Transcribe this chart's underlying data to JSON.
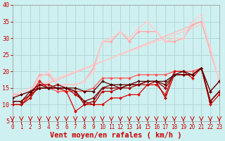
{
  "xlabel": "Vent moyen/en rafales ( km/h )",
  "xlim": [
    0,
    23
  ],
  "ylim": [
    5,
    40
  ],
  "yticks": [
    5,
    10,
    15,
    20,
    25,
    30,
    35,
    40
  ],
  "xticks": [
    0,
    1,
    2,
    3,
    4,
    5,
    6,
    7,
    8,
    9,
    10,
    11,
    12,
    13,
    14,
    15,
    16,
    17,
    18,
    19,
    20,
    21,
    22,
    23
  ],
  "bg_color": "#cff0f0",
  "grid_color": "#aed4d4",
  "series": [
    {
      "x": [
        0,
        1,
        2,
        3,
        4,
        5,
        6,
        7,
        8,
        9,
        10,
        11,
        12,
        13,
        14,
        15,
        16,
        17,
        18,
        19,
        20,
        21,
        22,
        23
      ],
      "y": [
        10,
        10,
        13,
        17,
        15,
        15,
        14,
        8,
        10,
        10,
        10,
        12,
        12,
        13,
        13,
        16,
        16,
        13,
        20,
        20,
        18,
        21,
        10,
        13
      ],
      "color": "#dd0000",
      "lw": 0.9,
      "marker": "D",
      "ms": 2.0,
      "zorder": 5
    },
    {
      "x": [
        0,
        1,
        2,
        3,
        4,
        5,
        6,
        7,
        8,
        9,
        10,
        11,
        12,
        13,
        14,
        15,
        16,
        17,
        18,
        19,
        20,
        21,
        22,
        23
      ],
      "y": [
        10,
        10,
        12,
        16,
        16,
        15,
        15,
        13,
        11,
        10,
        14,
        14,
        15,
        16,
        16,
        16,
        17,
        12,
        19,
        19,
        19,
        21,
        11,
        14
      ],
      "color": "#bb0000",
      "lw": 0.9,
      "marker": "D",
      "ms": 2.0,
      "zorder": 5
    },
    {
      "x": [
        0,
        1,
        2,
        3,
        4,
        5,
        6,
        7,
        8,
        9,
        10,
        11,
        12,
        13,
        14,
        15,
        16,
        17,
        18,
        19,
        20,
        21,
        22,
        23
      ],
      "y": [
        11,
        11,
        13,
        15,
        15,
        15,
        15,
        14,
        10,
        11,
        15,
        15,
        15,
        15,
        16,
        17,
        17,
        15,
        19,
        19,
        19,
        21,
        11,
        14
      ],
      "color": "#990000",
      "lw": 0.9,
      "marker": "D",
      "ms": 2.0,
      "zorder": 5
    },
    {
      "x": [
        0,
        1,
        2,
        3,
        4,
        5,
        6,
        7,
        8,
        9,
        10,
        11,
        12,
        13,
        14,
        15,
        16,
        17,
        18,
        19,
        20,
        21,
        22,
        23
      ],
      "y": [
        11,
        11,
        14,
        16,
        15,
        16,
        15,
        14,
        11,
        12,
        15,
        16,
        15,
        16,
        16,
        17,
        17,
        16,
        19,
        19,
        19,
        21,
        11,
        14
      ],
      "color": "#770000",
      "lw": 0.9,
      "marker": "D",
      "ms": 2.0,
      "zorder": 5
    },
    {
      "x": [
        0,
        1,
        2,
        3,
        4,
        5,
        6,
        7,
        8,
        9,
        10,
        11,
        12,
        13,
        14,
        15,
        16,
        17,
        18,
        19,
        20,
        21,
        22,
        23
      ],
      "y": [
        12,
        13,
        14,
        15,
        15,
        15,
        15,
        15,
        14,
        14,
        17,
        16,
        16,
        16,
        17,
        17,
        17,
        17,
        19,
        20,
        19,
        21,
        14,
        17
      ],
      "color": "#550000",
      "lw": 0.9,
      "marker": "D",
      "ms": 2.0,
      "zorder": 5
    },
    {
      "x": [
        0,
        1,
        2,
        3,
        4,
        5,
        6,
        7,
        8,
        9,
        10,
        11,
        12,
        13,
        14,
        15,
        16,
        17,
        18,
        19,
        20,
        21,
        22,
        23
      ],
      "y": [
        10,
        10,
        13,
        15,
        15,
        14,
        14,
        14,
        14,
        15,
        18,
        18,
        18,
        18,
        19,
        19,
        19,
        19,
        20,
        20,
        20,
        21,
        14,
        17
      ],
      "color": "#ff5555",
      "lw": 0.9,
      "marker": "D",
      "ms": 2.0,
      "zorder": 4
    },
    {
      "x": [
        0,
        1,
        2,
        3,
        4,
        5,
        6,
        7,
        8,
        9,
        10,
        11,
        12,
        13,
        14,
        15,
        16,
        17,
        18,
        19,
        20,
        21,
        22,
        23
      ],
      "y": [
        13,
        13,
        14,
        19,
        19,
        16,
        16,
        16,
        17,
        21,
        29,
        29,
        32,
        29,
        32,
        32,
        32,
        29,
        29,
        30,
        34,
        35,
        26,
        17
      ],
      "color": "#ffaaaa",
      "lw": 1.0,
      "marker": "D",
      "ms": 2.0,
      "zorder": 3
    },
    {
      "x": [
        0,
        1,
        2,
        3,
        4,
        5,
        6,
        7,
        8,
        9,
        10,
        11,
        12,
        13,
        14,
        15,
        16,
        17,
        18,
        19,
        20,
        21,
        22,
        23
      ],
      "y": [
        12,
        13,
        14,
        18,
        20,
        16,
        16,
        16,
        17,
        20,
        29,
        30,
        32,
        30,
        33,
        35,
        32,
        29,
        30,
        30,
        35,
        37,
        27,
        17
      ],
      "color": "#ffcccc",
      "lw": 1.0,
      "marker": "D",
      "ms": 2.0,
      "zorder": 3
    },
    {
      "x": [
        0,
        21
      ],
      "y": [
        12,
        35
      ],
      "color": "#ffbbbb",
      "lw": 1.0,
      "marker": null,
      "ms": 0,
      "zorder": 2
    },
    {
      "x": [
        0,
        21
      ],
      "y": [
        13,
        34
      ],
      "color": "#ffcccc",
      "lw": 1.0,
      "marker": null,
      "ms": 0,
      "zorder": 2
    }
  ],
  "axis_label_color": "#cc0000",
  "tick_color": "#cc0000",
  "tick_fontsize": 5.5,
  "xlabel_fontsize": 7.5
}
